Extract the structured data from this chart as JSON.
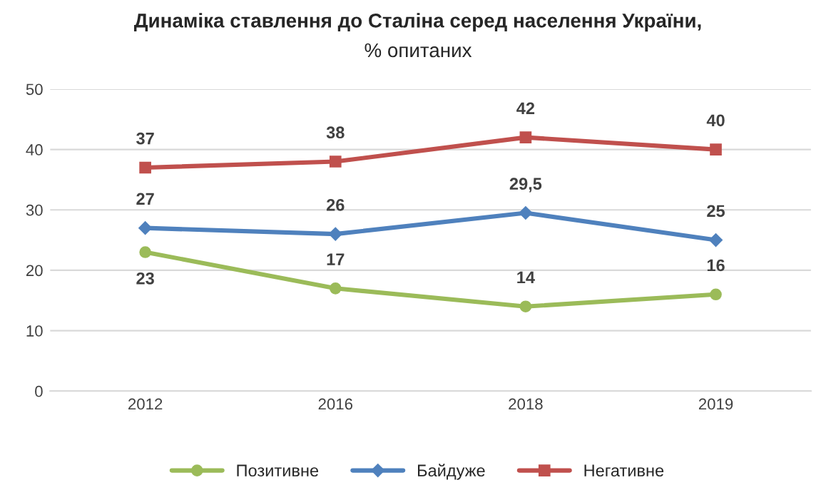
{
  "chart_data": {
    "type": "line",
    "title": "Динаміка ставлення до Сталіна серед населення України,",
    "subtitle": "% опитаних",
    "categories": [
      "2012",
      "2016",
      "2018",
      "2019"
    ],
    "series": [
      {
        "name": "Позитивне",
        "color": "#9bbb59",
        "marker": "circle",
        "values": [
          23,
          17,
          14,
          16
        ],
        "value_labels": [
          "23",
          "17",
          "14",
          "16"
        ]
      },
      {
        "name": "Байдуже",
        "color": "#4f81bd",
        "marker": "diamond",
        "values": [
          27,
          26,
          29.5,
          25
        ],
        "value_labels": [
          "27",
          "26",
          "29,5",
          "25"
        ]
      },
      {
        "name": "Негативне",
        "color": "#c0504d",
        "marker": "square",
        "values": [
          37,
          38,
          42,
          40
        ],
        "value_labels": [
          "37",
          "38",
          "42",
          "40"
        ]
      }
    ],
    "ylim": [
      0,
      50
    ],
    "yticks": [
      0,
      10,
      20,
      30,
      40,
      50
    ],
    "grid": "y",
    "legend": "bottom",
    "line_style": "solid"
  }
}
